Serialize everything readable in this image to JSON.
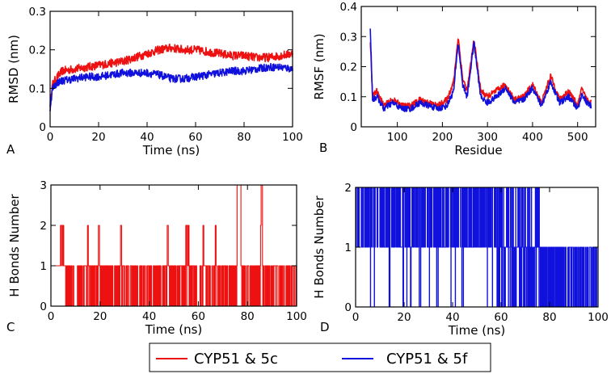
{
  "legend": {
    "items": [
      {
        "label": "CYP51 & 5c",
        "color": "#ee1111"
      },
      {
        "label": "CYP51 & 5f",
        "color": "#1111dd"
      }
    ]
  },
  "chart_data": [
    {
      "panel": "A",
      "type": "line",
      "xlabel": "Time (ns)",
      "ylabel": "RMSD (nm)",
      "xlim": [
        0,
        100
      ],
      "ylim": [
        0,
        0.3
      ],
      "xticks": [
        0,
        20,
        40,
        60,
        80,
        100
      ],
      "yticks": [
        0,
        0.1,
        0.2,
        0.3
      ],
      "ytick_labels": [
        "0",
        "0.1",
        "0.2",
        "0.3"
      ],
      "series": [
        {
          "name": "CYP51 & 5c",
          "color": "#ee1111",
          "x": [
            0,
            1,
            3,
            5,
            10,
            15,
            20,
            25,
            30,
            35,
            40,
            45,
            50,
            55,
            60,
            65,
            70,
            75,
            80,
            85,
            90,
            95,
            100
          ],
          "y": [
            0.06,
            0.11,
            0.13,
            0.145,
            0.15,
            0.155,
            0.16,
            0.165,
            0.17,
            0.18,
            0.19,
            0.2,
            0.205,
            0.2,
            0.2,
            0.195,
            0.19,
            0.185,
            0.185,
            0.18,
            0.18,
            0.185,
            0.19
          ],
          "noise": 0.011
        },
        {
          "name": "CYP51 & 5f",
          "color": "#1111dd",
          "x": [
            0,
            1,
            3,
            5,
            10,
            15,
            20,
            25,
            30,
            35,
            40,
            45,
            50,
            55,
            60,
            65,
            70,
            75,
            80,
            85,
            90,
            95,
            100
          ],
          "y": [
            0.05,
            0.1,
            0.115,
            0.12,
            0.125,
            0.13,
            0.13,
            0.135,
            0.14,
            0.14,
            0.14,
            0.135,
            0.125,
            0.125,
            0.13,
            0.135,
            0.14,
            0.145,
            0.145,
            0.15,
            0.155,
            0.155,
            0.15
          ],
          "noise": 0.01
        }
      ]
    },
    {
      "panel": "B",
      "type": "line",
      "xlabel": "Residue",
      "ylabel": "RMSF (nm)",
      "xlim": [
        20,
        540
      ],
      "ylim": [
        0,
        0.4
      ],
      "xticks": [
        100,
        200,
        300,
        400,
        500
      ],
      "yticks": [
        0,
        0.1,
        0.2,
        0.3,
        0.4
      ],
      "ytick_labels": [
        "0",
        "0.1",
        "0.2",
        "0.3",
        "0.4"
      ],
      "series": [
        {
          "name": "CYP51 & 5c",
          "color": "#ee1111",
          "x": [
            40,
            45,
            55,
            70,
            90,
            110,
            130,
            150,
            170,
            190,
            210,
            225,
            235,
            245,
            255,
            270,
            285,
            300,
            320,
            340,
            360,
            380,
            400,
            420,
            440,
            460,
            480,
            500,
            510,
            520,
            530
          ],
          "y": [
            0.29,
            0.1,
            0.12,
            0.07,
            0.09,
            0.07,
            0.07,
            0.09,
            0.08,
            0.07,
            0.09,
            0.15,
            0.3,
            0.16,
            0.12,
            0.29,
            0.12,
            0.1,
            0.12,
            0.14,
            0.09,
            0.1,
            0.14,
            0.08,
            0.17,
            0.09,
            0.12,
            0.07,
            0.13,
            0.09,
            0.08
          ],
          "noise": 0.01
        },
        {
          "name": "CYP51 & 5f",
          "color": "#1111dd",
          "x": [
            40,
            45,
            55,
            70,
            90,
            110,
            130,
            150,
            170,
            190,
            210,
            225,
            235,
            245,
            255,
            270,
            285,
            300,
            320,
            340,
            360,
            380,
            400,
            420,
            440,
            460,
            480,
            500,
            510,
            520,
            530
          ],
          "y": [
            0.33,
            0.09,
            0.1,
            0.06,
            0.08,
            0.06,
            0.06,
            0.08,
            0.07,
            0.06,
            0.07,
            0.12,
            0.28,
            0.14,
            0.1,
            0.28,
            0.1,
            0.08,
            0.1,
            0.13,
            0.08,
            0.09,
            0.13,
            0.07,
            0.15,
            0.08,
            0.1,
            0.06,
            0.11,
            0.08,
            0.07
          ],
          "noise": 0.01
        }
      ]
    },
    {
      "panel": "C",
      "type": "step",
      "xlabel": "Time (ns)",
      "ylabel": "H Bonds Number",
      "xlim": [
        0,
        100
      ],
      "ylim": [
        0,
        3
      ],
      "xticks": [
        0,
        20,
        40,
        60,
        80,
        100
      ],
      "yticks": [
        0,
        1,
        2,
        3
      ],
      "ytick_labels": [
        "0",
        "1",
        "2",
        "3"
      ],
      "series": [
        {
          "name": "CYP51 & 5c",
          "color": "#ee1111",
          "base": 1,
          "dense_from": 6,
          "dense_to": 100,
          "spikes_to_2": [
            4,
            4.5,
            5,
            15,
            19.5,
            28.5,
            47.5,
            55,
            55.5,
            56,
            62,
            67,
            85.5
          ],
          "spikes_to_3": [
            76,
            76.5,
            77,
            85.8
          ]
        }
      ]
    },
    {
      "panel": "D",
      "type": "step",
      "xlabel": "Time (ns)",
      "ylabel": "H Bonds Number",
      "xlim": [
        0,
        100
      ],
      "ylim": [
        0,
        2
      ],
      "xticks": [
        0,
        20,
        40,
        60,
        80,
        100
      ],
      "yticks": [
        0,
        1,
        2
      ],
      "ytick_labels": [
        "0",
        "1",
        "2"
      ],
      "series": [
        {
          "name": "CYP51 & 5f",
          "color": "#1111dd",
          "phases": [
            {
              "from": 0,
              "to": 58,
              "base": 2,
              "drop_to": 1,
              "occasional_zero": true
            },
            {
              "from": 58,
              "to": 76,
              "base": 1,
              "drop_to": 0,
              "occasional_two": true
            },
            {
              "from": 76,
              "to": 100,
              "base": 1,
              "drop_to": 0,
              "occasional_two": false
            }
          ]
        }
      ]
    }
  ]
}
